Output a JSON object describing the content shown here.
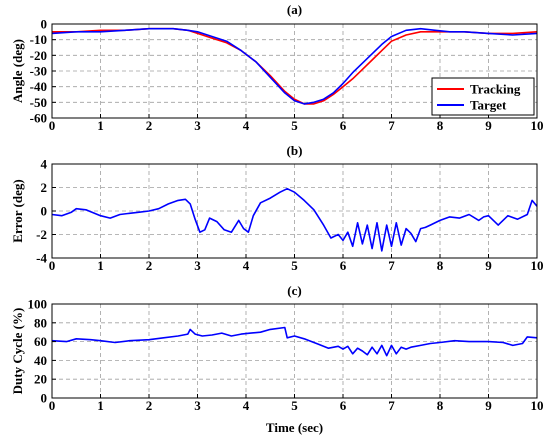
{
  "chart_data": [
    {
      "type": "line",
      "title": "(a)",
      "xlabel": "",
      "ylabel": "Angle (deg)",
      "xlim": [
        0,
        10
      ],
      "ylim": [
        -60,
        0
      ],
      "xticks": [
        0,
        1,
        2,
        3,
        4,
        5,
        6,
        7,
        8,
        9,
        10
      ],
      "yticks": [
        0,
        -10,
        -20,
        -30,
        -40,
        -50,
        -60
      ],
      "grid": true,
      "legend": "bottom-right",
      "series": [
        {
          "name": "Tracking",
          "color": "#ff0000",
          "x": [
            0,
            0.5,
            1,
            1.5,
            2,
            2.5,
            2.8,
            3,
            3.3,
            3.6,
            3.9,
            4.2,
            4.5,
            4.8,
            5.0,
            5.2,
            5.4,
            5.6,
            5.8,
            6.0,
            6.2,
            6.4,
            6.6,
            6.8,
            7.0,
            7.3,
            7.6,
            7.9,
            8.2,
            8.5,
            9.0,
            9.5,
            10
          ],
          "values": [
            -5,
            -5,
            -4,
            -4,
            -3,
            -3,
            -4,
            -6,
            -9,
            -12,
            -17,
            -24,
            -33,
            -43,
            -48,
            -51,
            -51,
            -49,
            -45,
            -40,
            -35,
            -29,
            -23,
            -17,
            -11,
            -7,
            -5,
            -5,
            -5,
            -5,
            -6,
            -6,
            -5
          ]
        },
        {
          "name": "Target",
          "color": "#0000ff",
          "x": [
            0,
            0.5,
            1,
            1.5,
            2,
            2.5,
            2.8,
            3,
            3.3,
            3.6,
            3.9,
            4.2,
            4.5,
            4.8,
            5.0,
            5.2,
            5.4,
            5.6,
            5.8,
            6.0,
            6.2,
            6.4,
            6.6,
            6.8,
            7.0,
            7.3,
            7.6,
            7.9,
            8.2,
            8.5,
            9.0,
            9.5,
            10
          ],
          "values": [
            -6,
            -5,
            -5,
            -4,
            -3,
            -3,
            -4,
            -5,
            -8,
            -11,
            -17,
            -24,
            -34,
            -44,
            -49,
            -51,
            -50,
            -48,
            -44,
            -38,
            -31,
            -25,
            -19,
            -13,
            -8,
            -4,
            -3,
            -4,
            -5,
            -5,
            -6,
            -7,
            -6
          ]
        }
      ]
    },
    {
      "type": "line",
      "title": "(b)",
      "xlabel": "",
      "ylabel": "Error (deg)",
      "xlim": [
        0,
        10
      ],
      "ylim": [
        -4,
        4
      ],
      "xticks": [
        0,
        1,
        2,
        3,
        4,
        5,
        6,
        7,
        8,
        9,
        10
      ],
      "yticks": [
        4,
        2,
        0,
        -2,
        -4
      ],
      "grid": true,
      "series": [
        {
          "color": "#0000ff",
          "x": [
            0,
            0.2,
            0.4,
            0.5,
            0.7,
            1.0,
            1.2,
            1.4,
            1.6,
            1.8,
            2.0,
            2.2,
            2.4,
            2.6,
            2.75,
            2.85,
            2.95,
            3.05,
            3.15,
            3.25,
            3.4,
            3.55,
            3.7,
            3.85,
            3.95,
            4.05,
            4.15,
            4.3,
            4.5,
            4.7,
            4.85,
            5.0,
            5.2,
            5.4,
            5.6,
            5.75,
            5.9,
            6.0,
            6.1,
            6.2,
            6.3,
            6.4,
            6.5,
            6.6,
            6.7,
            6.8,
            6.9,
            7.0,
            7.1,
            7.2,
            7.3,
            7.4,
            7.5,
            7.6,
            7.7,
            7.8,
            8.0,
            8.2,
            8.4,
            8.6,
            8.8,
            8.9,
            9.0,
            9.2,
            9.4,
            9.6,
            9.8,
            9.9,
            10
          ],
          "values": [
            -0.3,
            -0.4,
            -0.1,
            0.2,
            0.1,
            -0.4,
            -0.6,
            -0.3,
            -0.2,
            -0.1,
            0.0,
            0.2,
            0.6,
            0.9,
            1.0,
            0.6,
            -0.7,
            -1.8,
            -1.6,
            -0.6,
            -0.9,
            -1.6,
            -1.8,
            -0.8,
            -1.5,
            -1.8,
            -0.4,
            0.7,
            1.1,
            1.6,
            1.9,
            1.6,
            0.9,
            0.1,
            -1.2,
            -2.3,
            -2.0,
            -2.5,
            -1.8,
            -3.0,
            -1.0,
            -2.8,
            -1.2,
            -3.2,
            -1.0,
            -3.4,
            -1.2,
            -3.0,
            -1.0,
            -2.9,
            -1.5,
            -1.9,
            -2.6,
            -1.5,
            -1.4,
            -1.2,
            -0.8,
            -0.5,
            -0.6,
            -0.3,
            -0.8,
            -0.5,
            -0.4,
            -1.2,
            -0.4,
            -0.7,
            -0.3,
            0.9,
            0.4
          ]
        }
      ]
    },
    {
      "type": "line",
      "title": "(c)",
      "xlabel": "Time (sec)",
      "ylabel": "Duty Cycle (%)",
      "xlim": [
        0,
        10
      ],
      "ylim": [
        0,
        100
      ],
      "xticks": [
        0,
        1,
        2,
        3,
        4,
        5,
        6,
        7,
        8,
        9,
        10
      ],
      "yticks": [
        100,
        80,
        60,
        40,
        20,
        0
      ],
      "grid": true,
      "series": [
        {
          "color": "#0000ff",
          "x": [
            0,
            0.3,
            0.5,
            0.8,
            1.0,
            1.3,
            1.6,
            2.0,
            2.3,
            2.6,
            2.8,
            2.85,
            2.95,
            3.1,
            3.3,
            3.5,
            3.7,
            3.9,
            4.1,
            4.3,
            4.5,
            4.8,
            4.85,
            5.0,
            5.2,
            5.5,
            5.7,
            5.9,
            6.0,
            6.1,
            6.2,
            6.3,
            6.4,
            6.5,
            6.6,
            6.7,
            6.8,
            6.9,
            7.0,
            7.1,
            7.2,
            7.3,
            7.4,
            7.6,
            7.8,
            8.0,
            8.3,
            8.6,
            9.0,
            9.3,
            9.5,
            9.7,
            9.8,
            10
          ],
          "values": [
            61,
            60,
            63,
            62,
            61,
            59,
            61,
            62,
            64,
            66,
            68,
            73,
            68,
            66,
            67,
            69,
            66,
            68,
            69,
            70,
            73,
            75,
            64,
            66,
            63,
            57,
            53,
            55,
            52,
            55,
            47,
            53,
            50,
            46,
            54,
            47,
            56,
            45,
            56,
            47,
            54,
            52,
            54,
            56,
            58,
            59,
            61,
            60,
            60,
            59,
            56,
            58,
            65,
            64
          ]
        }
      ]
    }
  ]
}
